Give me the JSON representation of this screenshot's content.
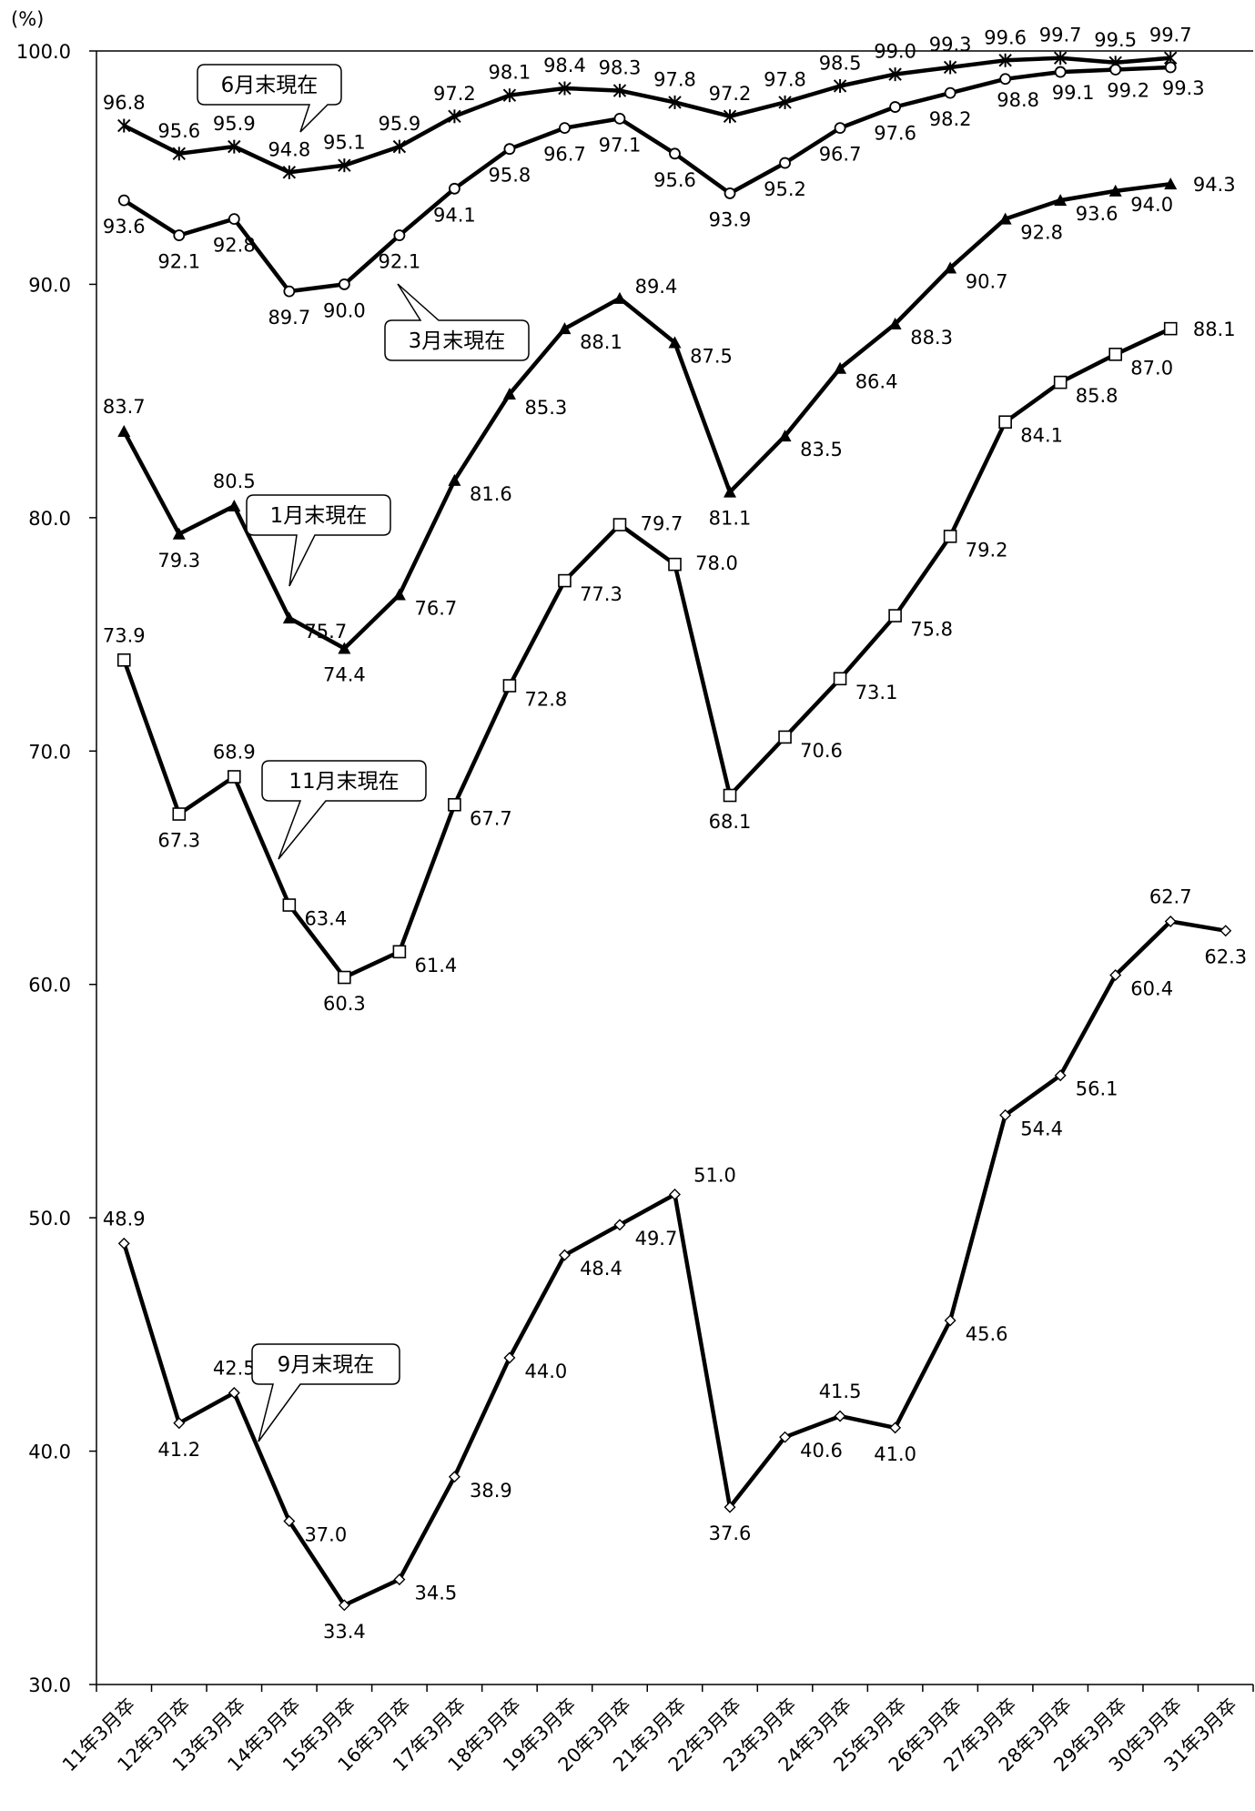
{
  "chart_data": {
    "type": "line",
    "y_unit": "(%)",
    "ylim": [
      30,
      100
    ],
    "y_ticks": [
      "30.0",
      "40.0",
      "50.0",
      "60.0",
      "70.0",
      "80.0",
      "90.0",
      "100.0"
    ],
    "categories": [
      "11年3月卒",
      "12年3月卒",
      "13年3月卒",
      "14年3月卒",
      "15年3月卒",
      "16年3月卒",
      "17年3月卒",
      "18年3月卒",
      "19年3月卒",
      "20年3月卒",
      "21年3月卒",
      "22年3月卒",
      "23年3月卒",
      "24年3月卒",
      "25年3月卒",
      "26年3月卒",
      "27年3月卒",
      "28年3月卒",
      "29年3月卒",
      "30年3月卒",
      "31年3月卒"
    ],
    "grid": false,
    "series": [
      {
        "name": "6月末現在",
        "marker": "asterisk",
        "values": [
          96.8,
          95.6,
          95.9,
          94.8,
          95.1,
          95.9,
          97.2,
          98.1,
          98.4,
          98.3,
          97.8,
          97.2,
          97.8,
          98.5,
          99.0,
          99.3,
          99.6,
          99.7,
          99.5,
          99.7,
          null
        ]
      },
      {
        "name": "3月末現在",
        "marker": "circle",
        "values": [
          93.6,
          92.1,
          92.8,
          89.7,
          90.0,
          92.1,
          94.1,
          95.8,
          96.7,
          97.1,
          95.6,
          93.9,
          95.2,
          96.7,
          97.6,
          98.2,
          98.8,
          99.1,
          99.2,
          99.3,
          null
        ]
      },
      {
        "name": "1月末現在",
        "marker": "triangle",
        "values": [
          83.7,
          79.3,
          80.5,
          75.7,
          74.4,
          76.7,
          81.6,
          85.3,
          88.1,
          89.4,
          87.5,
          81.1,
          83.5,
          86.4,
          88.3,
          90.7,
          92.8,
          93.6,
          94.0,
          94.3,
          null
        ]
      },
      {
        "name": "11月末現在",
        "marker": "square",
        "values": [
          73.9,
          67.3,
          68.9,
          63.4,
          60.3,
          61.4,
          67.7,
          72.8,
          77.3,
          79.7,
          78.0,
          68.1,
          70.6,
          73.1,
          75.8,
          79.2,
          84.1,
          85.8,
          87.0,
          88.1,
          null
        ]
      },
      {
        "name": "9月末現在",
        "marker": "diamond",
        "values": [
          48.9,
          41.2,
          42.5,
          37.0,
          33.4,
          34.5,
          38.9,
          44.0,
          48.4,
          49.7,
          51.0,
          37.6,
          40.6,
          41.5,
          41.0,
          45.6,
          54.4,
          56.1,
          60.4,
          62.7,
          62.3
        ]
      }
    ]
  }
}
